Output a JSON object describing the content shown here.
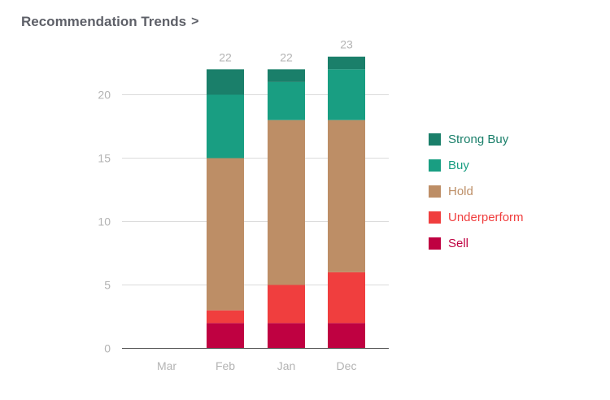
{
  "header": {
    "title": "Recommendation Trends",
    "chevron": ">"
  },
  "chart_data": {
    "type": "bar",
    "stacked": true,
    "title": "Recommendation Trends",
    "categories": [
      "Mar",
      "Feb",
      "Jan",
      "Dec"
    ],
    "series": [
      {
        "name": "Sell",
        "color": "#bf0141",
        "values": [
          0,
          2,
          2,
          2
        ]
      },
      {
        "name": "Underperform",
        "color": "#f03e3e",
        "values": [
          0,
          1,
          3,
          4
        ]
      },
      {
        "name": "Hold",
        "color": "#bd8e66",
        "values": [
          0,
          12,
          13,
          12
        ]
      },
      {
        "name": "Buy",
        "color": "#199e82",
        "values": [
          0,
          5,
          3,
          4
        ]
      },
      {
        "name": "Strong Buy",
        "color": "#1a7f6a",
        "values": [
          0,
          2,
          1,
          1
        ]
      }
    ],
    "totals": [
      "",
      "22",
      "22",
      "23"
    ],
    "yticks": [
      "0",
      "5",
      "10",
      "15",
      "20"
    ],
    "ylim": [
      0,
      23.5
    ],
    "grid": true,
    "legend_position": "right",
    "legend_order": [
      "Strong Buy",
      "Buy",
      "Hold",
      "Underperform",
      "Sell"
    ]
  },
  "colors": {
    "title": "#5e6068",
    "axis_text": "#b3b3b3",
    "grid": "#dcdcdc",
    "axis": "#555555"
  }
}
